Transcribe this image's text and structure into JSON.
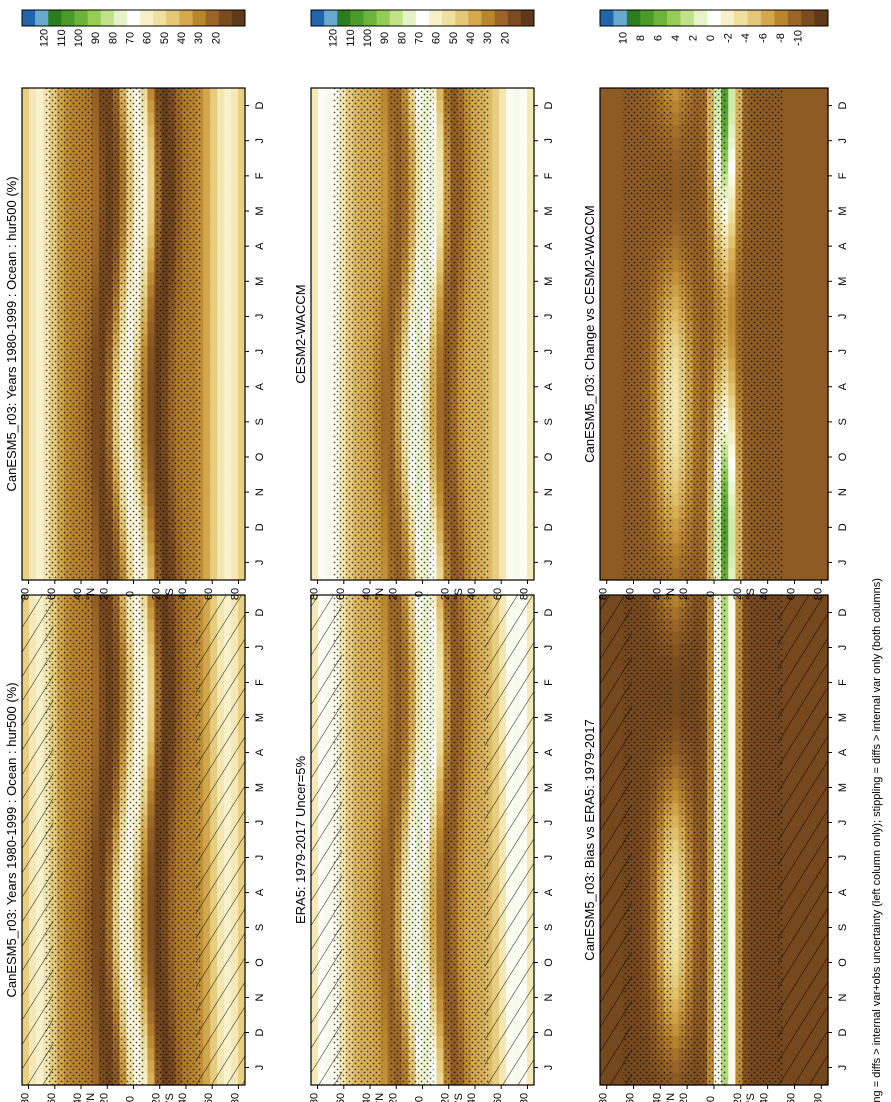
{
  "figure": {
    "footnote": "hatching = diffs > internal var+obs uncertainty (left column only); stippling = diffs > internal var only (both columns)"
  },
  "month_ticks": [
    "D",
    "J",
    "F",
    "M",
    "A",
    "M",
    "J",
    "J",
    "A",
    "S",
    "O",
    "N",
    "D",
    "J"
  ],
  "lat_ticks": [
    "80",
    "60",
    "40",
    "20",
    "0",
    "20",
    "40",
    "60",
    "80"
  ],
  "lat_hemi_labels": [
    "°N",
    "°S"
  ],
  "colorbars": {
    "absolute": {
      "labels": [
        "120",
        "110",
        "100",
        "90",
        "80",
        "70",
        "60",
        "50",
        "40",
        "30",
        "20"
      ],
      "colors": [
        "#2166ac",
        "#67a9cf",
        "#2d7d1f",
        "#4a9a2c",
        "#6bb33a",
        "#95cc55",
        "#bfe28a",
        "#e6f3c9",
        "#ffffff",
        "#f8f0c9",
        "#efe0a0",
        "#e4c878",
        "#d4a84e",
        "#b9852f",
        "#9a6527",
        "#7b4c1f",
        "#5e3a1a"
      ]
    },
    "difference": {
      "labels": [
        "10",
        "8",
        "6",
        "4",
        "2",
        "0",
        "-2",
        "-4",
        "-6",
        "-8",
        "-10"
      ],
      "colors": [
        "#2166ac",
        "#67a9cf",
        "#2d7d1f",
        "#4a9a2c",
        "#6bb33a",
        "#95cc55",
        "#bfe28a",
        "#e6f3c9",
        "#ffffff",
        "#f8f0c9",
        "#efe0a0",
        "#e4c878",
        "#d4a84e",
        "#b9852f",
        "#9a6527",
        "#7b4c1f",
        "#5e3a1a"
      ]
    }
  },
  "panels": [
    {
      "id": "p1",
      "title": "CanESM5_r03: Years 1980-1999 : Ocean : hur500 (%)",
      "kind": "absolute",
      "style": "model",
      "bar": "absolute",
      "hatch": true
    },
    {
      "id": "p2",
      "title": "CanESM5_r03: Years 1980-1999 : Ocean : hur500 (%)",
      "kind": "absolute",
      "style": "model",
      "bar": "absolute",
      "hatch": false
    },
    {
      "id": "p3",
      "title": "ERA5: 1979-2017 Uncer=5%",
      "kind": "absolute",
      "style": "reference",
      "bar": "absolute",
      "hatch": true
    },
    {
      "id": "p4",
      "title": "CESM2-WACCM",
      "kind": "absolute",
      "style": "reference",
      "bar": "absolute",
      "hatch": false
    },
    {
      "id": "p5",
      "title": "CanESM5_r03: Bias vs ERA5: 1979-2017",
      "kind": "difference",
      "style": "bias",
      "bar": "difference",
      "hatch": true
    },
    {
      "id": "p6",
      "title": "CanESM5_r03: Change vs CESM2-WACCM",
      "kind": "difference",
      "style": "change",
      "bar": "difference",
      "hatch": false
    }
  ],
  "chart_data": [
    {
      "type": "heatmap",
      "title": "CanESM5_r03: Years 1980-1999 : Ocean : hur500 (%)",
      "x": [
        "D",
        "J",
        "F",
        "M",
        "A",
        "M",
        "J",
        "J",
        "A",
        "S",
        "O",
        "N",
        "D",
        "J"
      ],
      "y": [
        -80,
        -60,
        -40,
        -20,
        0,
        20,
        40,
        60,
        80
      ],
      "colorbar": [
        "120",
        "110",
        "100",
        "90",
        "80",
        "70",
        "60",
        "50",
        "40",
        "30",
        "20"
      ]
    },
    {
      "type": "heatmap",
      "title": "CanESM5_r03: Years 1980-1999 : Ocean : hur500 (%)",
      "x": [
        "D",
        "J",
        "F",
        "M",
        "A",
        "M",
        "J",
        "J",
        "A",
        "S",
        "O",
        "N",
        "D",
        "J"
      ],
      "y": [
        -80,
        -60,
        -40,
        -20,
        0,
        20,
        40,
        60,
        80
      ],
      "colorbar": [
        "120",
        "110",
        "100",
        "90",
        "80",
        "70",
        "60",
        "50",
        "40",
        "30",
        "20"
      ]
    },
    {
      "type": "heatmap",
      "title": "ERA5: 1979-2017 Uncer=5%",
      "x": [
        "D",
        "J",
        "F",
        "M",
        "A",
        "M",
        "J",
        "J",
        "A",
        "S",
        "O",
        "N",
        "D",
        "J"
      ],
      "y": [
        -80,
        -60,
        -40,
        -20,
        0,
        20,
        40,
        60,
        80
      ],
      "colorbar": [
        "120",
        "110",
        "100",
        "90",
        "80",
        "70",
        "60",
        "50",
        "40",
        "30",
        "20"
      ]
    },
    {
      "type": "heatmap",
      "title": "CESM2-WACCM",
      "x": [
        "D",
        "J",
        "F",
        "M",
        "A",
        "M",
        "J",
        "J",
        "A",
        "S",
        "O",
        "N",
        "D",
        "J"
      ],
      "y": [
        -80,
        -60,
        -40,
        -20,
        0,
        20,
        40,
        60,
        80
      ],
      "colorbar": [
        "120",
        "110",
        "100",
        "90",
        "80",
        "70",
        "60",
        "50",
        "40",
        "30",
        "20"
      ]
    },
    {
      "type": "heatmap",
      "title": "CanESM5_r03: Bias vs ERA5: 1979-2017",
      "x": [
        "D",
        "J",
        "F",
        "M",
        "A",
        "M",
        "J",
        "J",
        "A",
        "S",
        "O",
        "N",
        "D",
        "J"
      ],
      "y": [
        -80,
        -60,
        -40,
        -20,
        0,
        20,
        40,
        60,
        80
      ],
      "colorbar": [
        "10",
        "8",
        "6",
        "4",
        "2",
        "0",
        "-2",
        "-4",
        "-6",
        "-8",
        "-10"
      ]
    },
    {
      "type": "heatmap",
      "title": "CanESM5_r03: Change vs CESM2-WACCM",
      "x": [
        "D",
        "J",
        "F",
        "M",
        "A",
        "M",
        "J",
        "J",
        "A",
        "S",
        "O",
        "N",
        "D",
        "J"
      ],
      "y": [
        -80,
        -60,
        -40,
        -20,
        0,
        20,
        40,
        60,
        80
      ],
      "colorbar": [
        "10",
        "8",
        "6",
        "4",
        "2",
        "0",
        "-2",
        "-4",
        "-6",
        "-8",
        "-10"
      ]
    }
  ]
}
